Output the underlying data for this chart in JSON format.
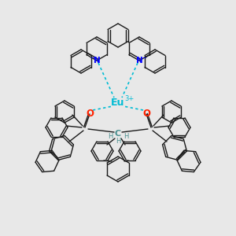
{
  "bg_color": "#e8e8e8",
  "eu_color": "#00bcd4",
  "n_color": "#0000ff",
  "o_color": "#ff2200",
  "c_color": "#4a9090",
  "bond_color": "#1a1a1a",
  "coord_color": "#00bcd4",
  "eu_label": "Eu",
  "eu_charge": "3+",
  "n_label": "N",
  "o_label": "O",
  "c_label": "C",
  "h_label": "H",
  "minus": "−"
}
